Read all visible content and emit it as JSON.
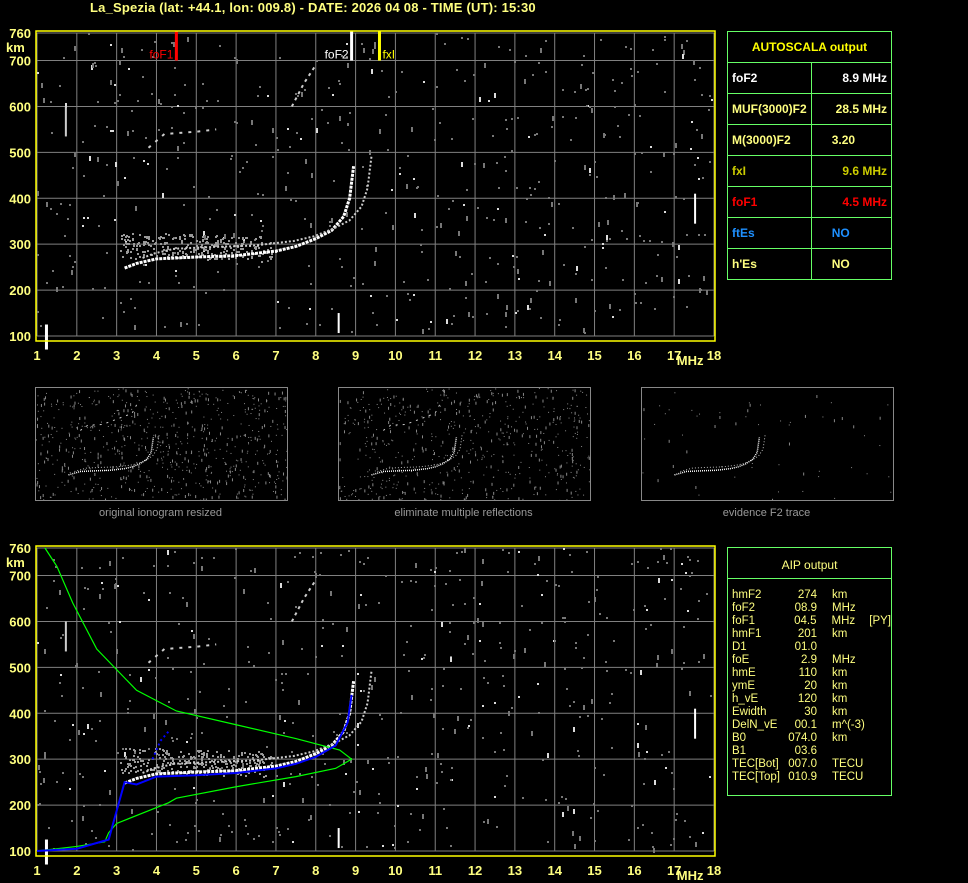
{
  "header": {
    "title": "La_Spezia (lat: +44.1, lon: 009.8) - DATE: 2026 04 08 - TIME (UT): 15:30"
  },
  "axes": {
    "x_ticks": [
      "1",
      "2",
      "3",
      "4",
      "5",
      "6",
      "7",
      "8",
      "9",
      "10",
      "11",
      "12",
      "13",
      "14",
      "15",
      "16",
      "17",
      "18"
    ],
    "x_unit": "MHz",
    "y_ticks": [
      "100",
      "200",
      "300",
      "400",
      "500",
      "600",
      "700",
      "760"
    ],
    "y_unit": "km",
    "x_range_mhz": [
      1,
      18
    ],
    "y_range_km": [
      100,
      760
    ]
  },
  "markers": [
    {
      "label": "foF1",
      "freq_mhz": 4.5,
      "color": "#ff0000"
    },
    {
      "label": "foF2",
      "freq_mhz": 8.9,
      "color": "#ffffff"
    },
    {
      "label": "fxI",
      "freq_mhz": 9.6,
      "color": "#ffff00"
    }
  ],
  "thumbnails": [
    {
      "label": "original ionogram resized"
    },
    {
      "label": "eliminate multiple reflections"
    },
    {
      "label": "evidence F2 trace"
    }
  ],
  "autoscala": {
    "title": "AUTOSCALA output",
    "rows": [
      {
        "name": "foF2",
        "value": "8.9 MHz",
        "color": "#ffffff"
      },
      {
        "name": "MUF(3000)F2",
        "value": "28.5 MHz",
        "color": "#ffff80"
      },
      {
        "name": "M(3000)F2",
        "value": "3.20",
        "color": "#ffff80"
      },
      {
        "name": "fxI",
        "value": "9.6 MHz",
        "color": "#cccc00"
      },
      {
        "name": "foF1",
        "value": "4.5 MHz",
        "color": "#ff0000"
      },
      {
        "name": "ftEs",
        "value": "NO",
        "color": "#1e90ff"
      },
      {
        "name": "h'Es",
        "value": "NO",
        "color": "#ffff80"
      }
    ]
  },
  "aip": {
    "title": "AIP output",
    "rows": [
      [
        "hmF2",
        "274",
        "km",
        ""
      ],
      [
        "foF2",
        "08.9",
        "MHz",
        ""
      ],
      [
        "foF1",
        "04.5",
        "MHz",
        "[PY]"
      ],
      [
        "hmF1",
        "201",
        "km",
        ""
      ],
      [
        "D1",
        "01.0",
        "",
        ""
      ],
      [
        "foE",
        "2.9",
        "MHz",
        ""
      ],
      [
        "hmE",
        "110",
        "km",
        ""
      ],
      [
        "ymE",
        "20",
        "km",
        ""
      ],
      [
        "h_vE",
        "120",
        "km",
        ""
      ],
      [
        "Ewidth",
        "30",
        "km",
        ""
      ],
      [
        "DelN_vE",
        "00.1",
        "m^(-3)",
        ""
      ],
      [
        "B0",
        "074.0",
        "km",
        ""
      ],
      [
        "B1",
        "03.6",
        "",
        ""
      ],
      [
        "TEC[Bot]",
        "007.0",
        "TECU",
        ""
      ],
      [
        "TEC[Top]",
        "010.9",
        "TECU",
        ""
      ]
    ]
  },
  "colors": {
    "frame": "#ffff00",
    "grid": "#808080",
    "table_border": "#66ff66",
    "profile": "#00ff00",
    "aip_trace": "#0000ff"
  }
}
